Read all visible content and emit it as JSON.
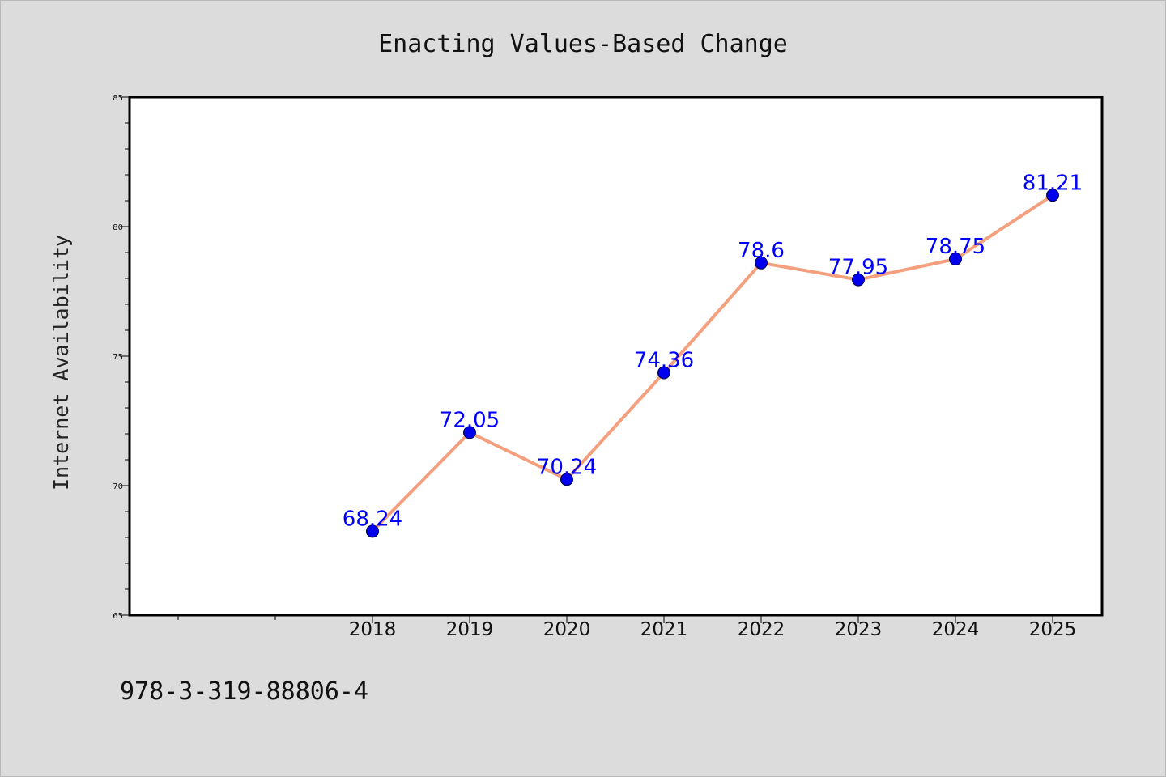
{
  "chart_data": {
    "type": "line",
    "title": "Enacting Values-Based Change",
    "xlabel": "",
    "ylabel": "Internet Availability",
    "categories": [
      "2018",
      "2019",
      "2020",
      "2021",
      "2022",
      "2023",
      "2024",
      "2025"
    ],
    "values": [
      68.24,
      72.05,
      70.24,
      74.36,
      78.6,
      77.95,
      78.75,
      81.21
    ],
    "data_labels": [
      "68.24",
      "72.05",
      "70.24",
      "74.36",
      "78.6",
      "77.95",
      "78.75",
      "81.21"
    ],
    "ylim": [
      65,
      85
    ],
    "yticks": [
      65,
      70,
      75,
      80,
      85
    ],
    "grid": false,
    "line_color": "#f4a07e",
    "marker_color": "#0000ee",
    "label_color": "#0000ff"
  },
  "footnote": "978-3-319-88806-4"
}
